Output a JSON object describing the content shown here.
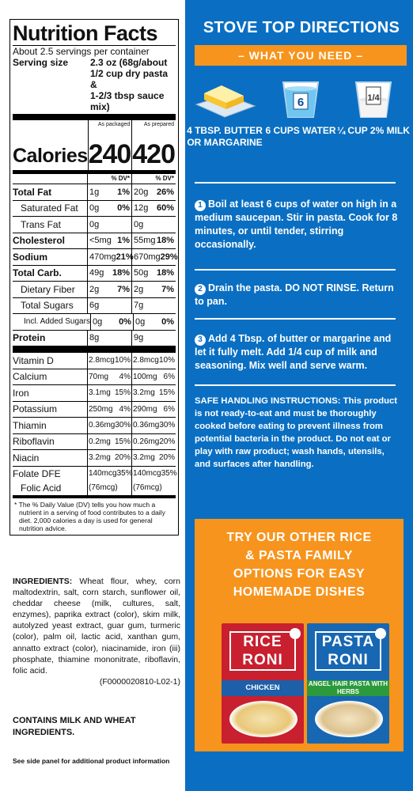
{
  "nutrition": {
    "title": "Nutrition Facts",
    "servings_per_container": "About 2.5 servings per container",
    "serving_size_label": "Serving size",
    "serving_size_value": "2.3 oz (68g/about 1/2 cup dry pasta & 1-2/3 tbsp sauce mix)",
    "serving_size_lines": [
      "2.3 oz (68g/about",
      "1/2 cup dry pasta &",
      "1-2/3 tbsp sauce mix)"
    ],
    "col_packaged": "As packaged",
    "col_prepared": "As prepared",
    "calories_label": "Calories",
    "calories_packaged": "240",
    "calories_prepared": "420",
    "dv_header": "% DV*",
    "rows": [
      {
        "name": "Total Fat",
        "bold": true,
        "indent": 0,
        "a": "1g",
        "ap": "1%",
        "b": "20g",
        "bp": "26%"
      },
      {
        "name": "Saturated Fat",
        "bold": false,
        "indent": 1,
        "a": "0g",
        "ap": "0%",
        "b": "12g",
        "bp": "60%"
      },
      {
        "name": "Trans Fat",
        "bold": false,
        "indent": 1,
        "a": "0g",
        "ap": "",
        "b": "0g",
        "bp": ""
      },
      {
        "name": "Cholesterol",
        "bold": true,
        "indent": 0,
        "a": "<5mg",
        "ap": "1%",
        "b": "55mg",
        "bp": "18%"
      },
      {
        "name": "Sodium",
        "bold": true,
        "indent": 0,
        "a": "470mg",
        "ap": "21%",
        "b": "670mg",
        "bp": "29%"
      },
      {
        "name": "Total Carb.",
        "bold": true,
        "indent": 0,
        "a": "49g",
        "ap": "18%",
        "b": "50g",
        "bp": "18%"
      },
      {
        "name": "Dietary Fiber",
        "bold": false,
        "indent": 1,
        "a": "2g",
        "ap": "7%",
        "b": "2g",
        "bp": "7%"
      },
      {
        "name": "Total Sugars",
        "bold": false,
        "indent": 1,
        "a": "6g",
        "ap": "",
        "b": "7g",
        "bp": ""
      },
      {
        "name": "Incl. Added Sugars",
        "bold": false,
        "indent": 2,
        "a": "0g",
        "ap": "0%",
        "b": "0g",
        "bp": "0%"
      },
      {
        "name": "Protein",
        "bold": true,
        "indent": 0,
        "a": "8g",
        "ap": "",
        "b": "9g",
        "bp": ""
      }
    ],
    "vitamins": [
      {
        "name": "Vitamin D",
        "a": "2.8mcg",
        "ap": "10%",
        "b": "2.8mcg",
        "bp": "10%"
      },
      {
        "name": "Calcium",
        "a": "70mg",
        "ap": "4%",
        "b": "100mg",
        "bp": "6%"
      },
      {
        "name": "Iron",
        "a": "3.1mg",
        "ap": "15%",
        "b": "3.2mg",
        "bp": "15%"
      },
      {
        "name": "Potassium",
        "a": "250mg",
        "ap": "4%",
        "b": "290mg",
        "bp": "6%"
      },
      {
        "name": "Thiamin",
        "a": "0.36mg",
        "ap": "30%",
        "b": "0.36mg",
        "bp": "30%"
      },
      {
        "name": "Riboflavin",
        "a": "0.2mg",
        "ap": "15%",
        "b": "0.26mg",
        "bp": "20%"
      },
      {
        "name": "Niacin",
        "a": "3.2mg",
        "ap": "20%",
        "b": "3.2mg",
        "bp": "20%"
      }
    ],
    "folate": {
      "name": "Folate DFE",
      "sub": "Folic Acid",
      "a": "140mcg",
      "ap": "35%",
      "a2": "(76mcg)",
      "b": "140mcg",
      "bp": "35%",
      "b2": "(76mcg)"
    },
    "footnote": "* The % Daily Value (DV) tells you how much a nutrient in a serving of food contributes to a daily diet. 2,000 calories a day is used for general nutrition advice."
  },
  "ingredients": {
    "label": "INGREDIENTS:",
    "text": "Wheat flour, whey, corn maltodextrin, salt, corn starch, sunflower oil, cheddar cheese (milk, cultures, salt, enzymes), paprika extract (color), skim milk, autolyzed yeast extract, guar gum, turmeric (color), palm oil, lactic acid, xanthan gum, annatto extract (color), niacinamide, iron (iii) phosphate, thiamine mononitrate, riboflavin, folic acid.",
    "code": "(F0000020810-L02-1)"
  },
  "allergen": "CONTAINS MILK AND WHEAT INGREDIENTS.",
  "side_panel_note": "See side panel for additional product information",
  "directions": {
    "title": "STOVE TOP DIRECTIONS",
    "need_label": "– WHAT YOU NEED –",
    "items": [
      {
        "icon": "butter-icon",
        "label": "4 TBSP. BUTTER OR MARGARINE"
      },
      {
        "icon": "water-cup-icon",
        "cup_text": "6",
        "label": "6 CUPS WATER"
      },
      {
        "icon": "milk-cup-icon",
        "cup_text": "1/4",
        "label": "¼ CUP 2% MILK"
      }
    ],
    "steps": [
      {
        "num": "1",
        "text": "Boil at least 6 cups of water on high in a medium saucepan. Stir in pasta. Cook for 8 minutes, or until tender, stirring occasionally."
      },
      {
        "num": "2",
        "text": "Drain the pasta. DO NOT RINSE. Return to pan."
      },
      {
        "num": "3",
        "text": "Add 4 Tbsp. of butter or margarine and let it fully melt. Add 1/4 cup of milk and seasoning. Mix well and serve warm."
      }
    ],
    "safe_handling": "SAFE HANDLING INSTRUCTIONS: This product is not ready-to-eat and must be thoroughly cooked before eating to prevent illness from potential bacteria in the product. Do not eat or play with raw product; wash hands, utensils, and surfaces after handling."
  },
  "promo": {
    "title": "TRY OUR OTHER RICE & PASTA FAMILY OPTIONS FOR EASY HOMEMADE DISHES",
    "title_lines": [
      "TRY OUR OTHER RICE",
      "& PASTA FAMILY",
      "OPTIONS FOR EASY",
      "HOMEMADE DISHES"
    ],
    "products": [
      {
        "brand_top": "RICE",
        "brand_bottom": "RONI",
        "flavor": "CHICKEN",
        "color": "#c8202f",
        "band": "#1d5fa8"
      },
      {
        "brand_top": "PASTA",
        "brand_bottom": "RONI",
        "flavor": "ANGEL HAIR PASTA WITH HERBS",
        "color": "#1767b3",
        "band": "#2c9a3c"
      }
    ]
  },
  "colors": {
    "blue": "#0a6fc2",
    "orange": "#f7941d",
    "white": "#ffffff"
  }
}
